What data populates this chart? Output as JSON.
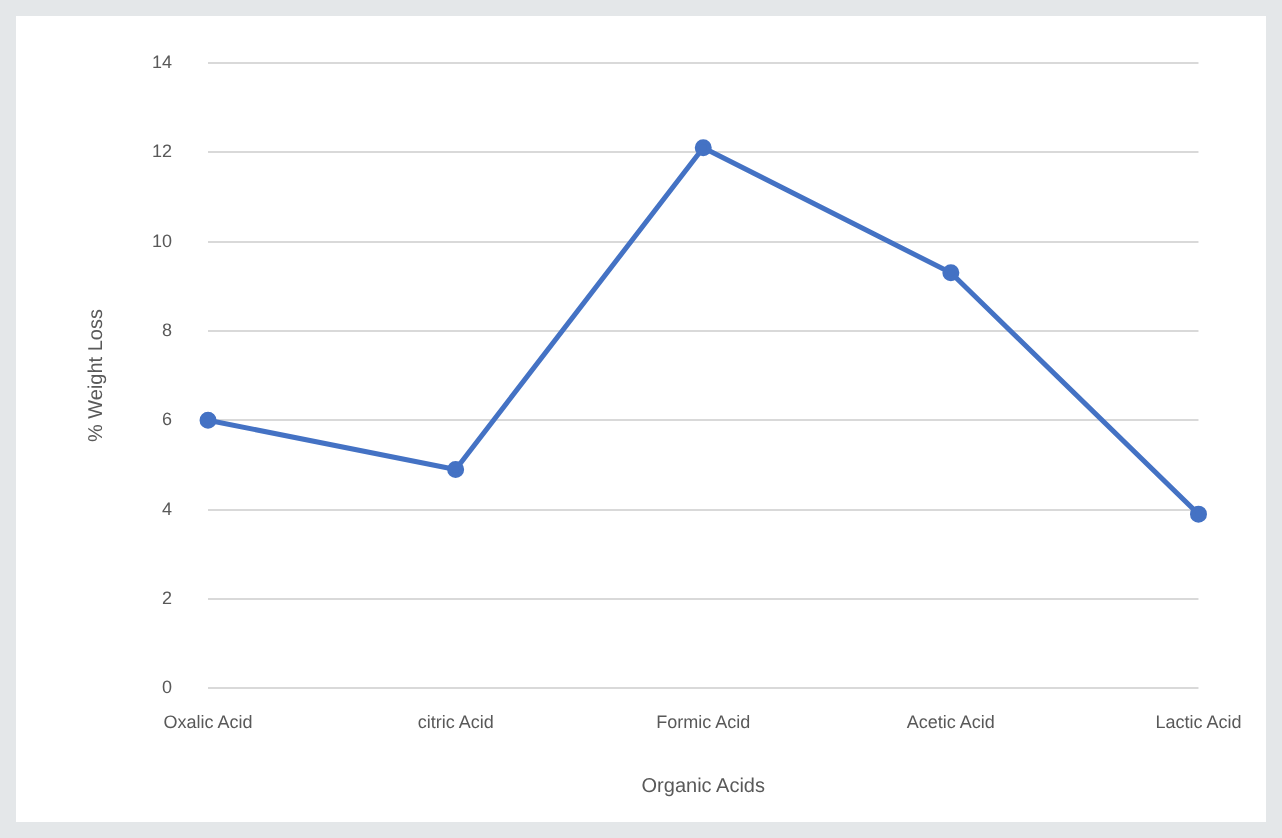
{
  "chart_data": {
    "type": "line",
    "xlabel": "Organic Acids",
    "ylabel": "% Weight Loss",
    "categories": [
      "Oxalic Acid",
      "citric Acid",
      "Formic Acid",
      "Acetic Acid",
      "Lactic Acid"
    ],
    "series": [
      {
        "color": "#4472c4",
        "values": [
          6.0,
          4.9,
          12.1,
          9.3,
          3.9
        ]
      }
    ],
    "ylim": [
      0,
      14
    ],
    "yticks": [
      0,
      2,
      4,
      6,
      8,
      10,
      12,
      14
    ],
    "grid": "y",
    "legend": false,
    "marker": "circle",
    "line_style": "solid"
  }
}
